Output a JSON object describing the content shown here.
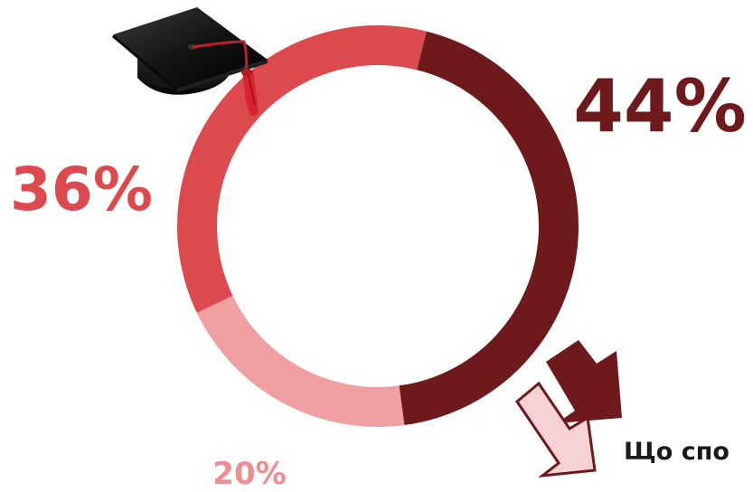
{
  "chart_data": {
    "type": "pie",
    "variant": "donut",
    "categories": [
      "44%",
      "20%",
      "36%"
    ],
    "values": [
      44,
      20,
      36
    ],
    "colors": [
      "#6e1a1c",
      "#f0a0a3",
      "#dc4a4e"
    ],
    "labels": [
      {
        "text": "44%",
        "color": "#6e1a1c"
      },
      {
        "text": "20%",
        "color": "#ef8e91"
      },
      {
        "text": "36%",
        "color": "#dc4a4e"
      }
    ],
    "start_angle_deg": 14,
    "direction": "clockwise",
    "legend": "none"
  },
  "decorations": {
    "cap_icon": "graduation-cap-icon",
    "arrow_icon": "down-right-arrow-icon",
    "arrow_colors": {
      "back": "#6e1a1c",
      "front": "#f7d2d4"
    },
    "caption": "Що спо",
    "caption_color": "#1a1a1a"
  }
}
